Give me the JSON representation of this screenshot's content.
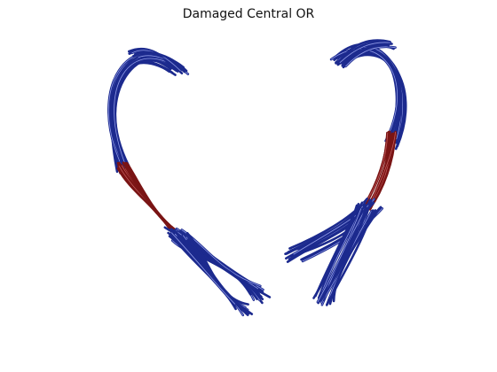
{
  "figure": {
    "title": "Damaged Central OR",
    "colors": {
      "background": "#ffffff",
      "intact_fiber": "#1c2a8e",
      "intact_fiber_highlight": "#8f9ae6",
      "damaged_fiber": "#7a1414",
      "damaged_fiber_highlight": "#c05a5a"
    },
    "left_tract": {
      "name": "left-fiber-bundle",
      "state_sequence": [
        "intact",
        "damaged",
        "intact"
      ]
    },
    "right_tract": {
      "name": "right-fiber-bundle",
      "state_sequence": [
        "intact",
        "damaged",
        "intact"
      ]
    }
  }
}
